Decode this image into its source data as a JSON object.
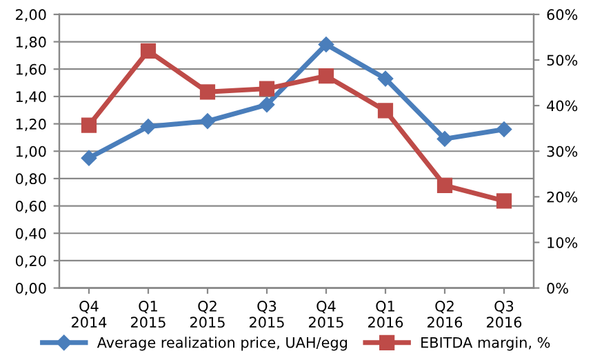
{
  "chart_data": {
    "type": "line",
    "categories": [
      "Q4\n2014",
      "Q1\n2015",
      "Q2\n2015",
      "Q3\n2015",
      "Q4\n2015",
      "Q1\n2016",
      "Q2\n2016",
      "Q3\n2016"
    ],
    "series": [
      {
        "name": "Average realization price, UAH/egg",
        "color": "#4a7ebb",
        "marker": "diamond",
        "values": [
          0.95,
          1.18,
          1.22,
          1.34,
          1.78,
          1.53,
          1.09,
          1.16
        ]
      },
      {
        "name": "EBITDA margin, %",
        "color": "#be4b48",
        "marker": "square",
        "axis": "y2",
        "values": [
          35.7,
          52.0,
          43.0,
          43.7,
          46.5,
          38.9,
          22.5,
          19.1
        ]
      }
    ],
    "ylim": [
      0,
      2
    ],
    "yticks": [
      {
        "value": 0,
        "label": "0,00"
      },
      {
        "value": 0.2,
        "label": "0,20"
      },
      {
        "value": 0.4,
        "label": "0,40"
      },
      {
        "value": 0.6,
        "label": "0,60"
      },
      {
        "value": 0.8,
        "label": "0,80"
      },
      {
        "value": 1.0,
        "label": "1,00"
      },
      {
        "value": 1.2,
        "label": "1,20"
      },
      {
        "value": 1.4,
        "label": "1,40"
      },
      {
        "value": 1.6,
        "label": "1,60"
      },
      {
        "value": 1.8,
        "label": "1,80"
      },
      {
        "value": 2.0,
        "label": "2,00"
      }
    ],
    "y2lim": [
      0,
      60
    ],
    "y2ticks": [
      {
        "value": 0,
        "label": "0%"
      },
      {
        "value": 10,
        "label": "10%"
      },
      {
        "value": 20,
        "label": "20%"
      },
      {
        "value": 30,
        "label": "30%"
      },
      {
        "value": 40,
        "label": "40%"
      },
      {
        "value": 50,
        "label": "50%"
      },
      {
        "value": 60,
        "label": "60%"
      }
    ],
    "grid": "y",
    "legend": "bottom"
  }
}
